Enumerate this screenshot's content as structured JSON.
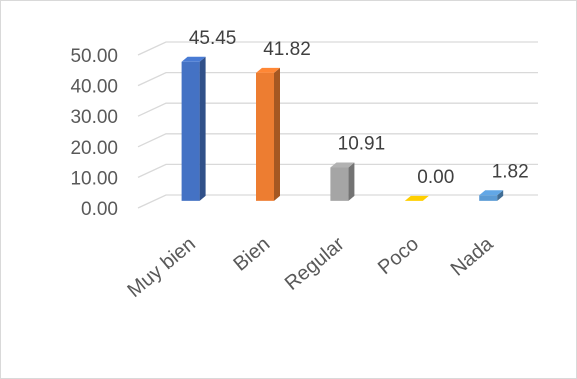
{
  "chart_data": {
    "type": "bar",
    "categories": [
      "Muy bien",
      "Bien",
      "Regular",
      "Poco",
      "Nada"
    ],
    "values": [
      45.45,
      41.82,
      10.91,
      0.0,
      1.82
    ],
    "value_labels": [
      "45.45",
      "41.82",
      "10.91",
      "0.00",
      "1.82"
    ],
    "y_ticks": [
      "0.00",
      "10.00",
      "20.00",
      "30.00",
      "40.00",
      "50.00"
    ],
    "ylim": [
      0,
      50
    ],
    "grid": true,
    "legend": "none",
    "style": "3d-column",
    "colors": [
      "#4472c4",
      "#ed7d31",
      "#a5a5a5",
      "#ffc000",
      "#5b9bd5"
    ]
  }
}
